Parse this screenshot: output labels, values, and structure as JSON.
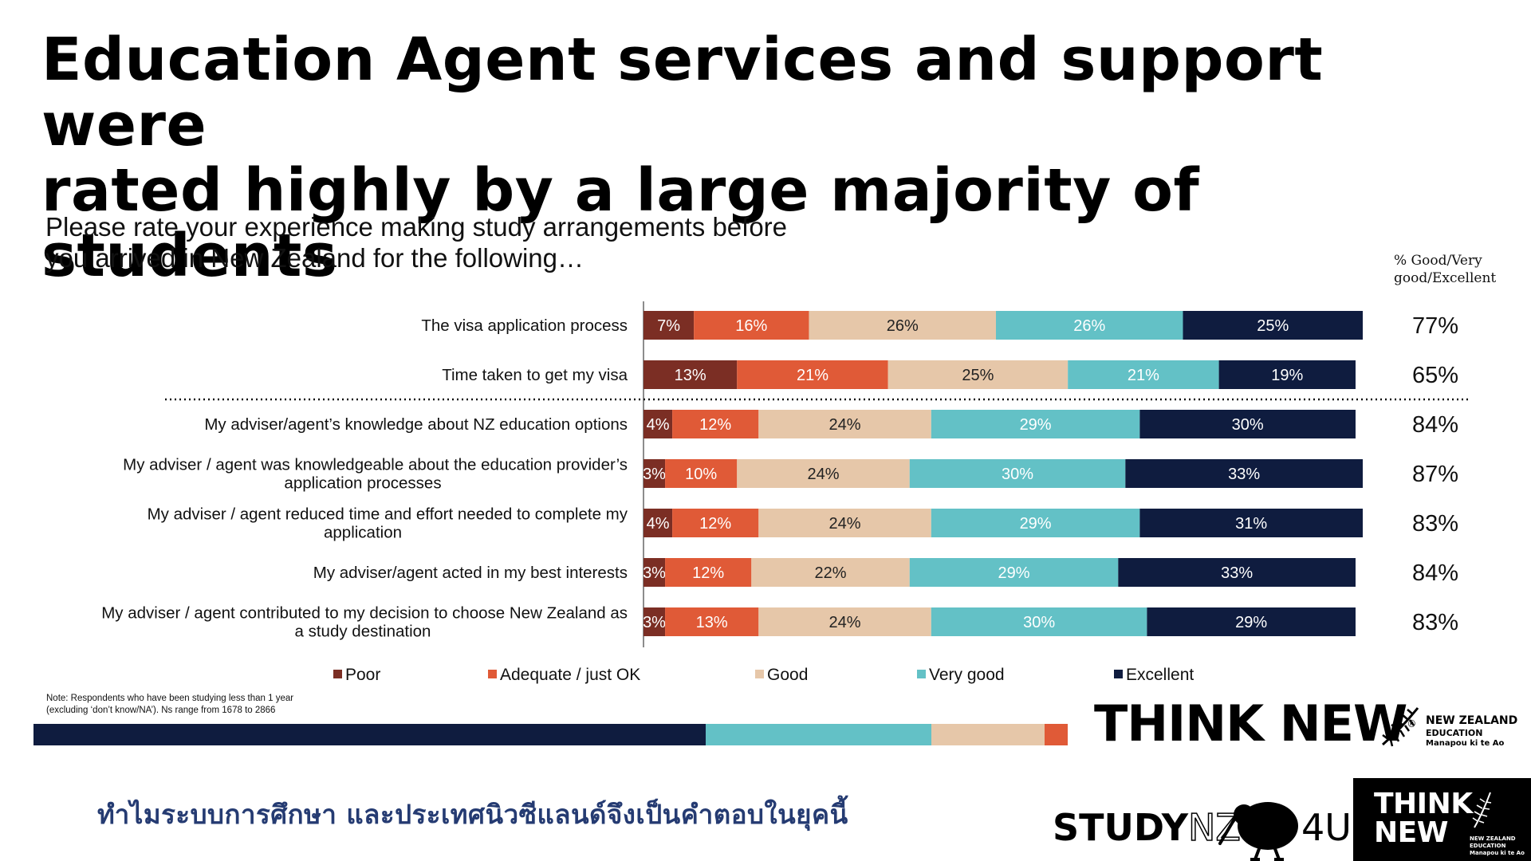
{
  "title_line1": "Education Agent services and support were",
  "title_line2": "rated highly by a large majority of students",
  "question_line1": "Please rate your experience making study arrangements before",
  "question_line2": "you arrived in New Zealand for the following…",
  "col_header_line1": "% Good/Very",
  "col_header_line2": "good/Excellent",
  "chart_data": {
    "type": "bar",
    "orientation": "horizontal-stacked-100",
    "question": "Please rate your experience making study arrangements before you arrived in New Zealand for the following…",
    "series": [
      {
        "name": "Poor",
        "color": "#7b2e24",
        "values": [
          7,
          13,
          4,
          3,
          4,
          3,
          3
        ]
      },
      {
        "name": "Adequate / just OK",
        "color": "#e05a37",
        "values": [
          16,
          21,
          12,
          10,
          12,
          12,
          13
        ]
      },
      {
        "name": "Good",
        "color": "#e6c7a9",
        "values": [
          26,
          25,
          24,
          24,
          24,
          22,
          24
        ]
      },
      {
        "name": "Very good",
        "color": "#63c1c6",
        "values": [
          26,
          21,
          29,
          30,
          29,
          29,
          30
        ]
      },
      {
        "name": "Excellent",
        "color": "#0f1c3f",
        "values": [
          25,
          19,
          30,
          33,
          31,
          33,
          29
        ]
      }
    ],
    "categories": [
      [
        "The visa application process"
      ],
      [
        "Time taken to get my visa"
      ],
      [
        "My adviser/agent’s knowledge about NZ education options"
      ],
      [
        "My adviser / agent was knowledgeable about the education provider’s",
        "application processes"
      ],
      [
        "My adviser / agent reduced time and effort needed to complete my",
        "application"
      ],
      [
        "My adviser/agent acted in my best interests"
      ],
      [
        "My adviser / agent contributed to my decision to choose New Zealand as",
        "a study destination"
      ]
    ],
    "pct_good_very_good_excellent": [
      "77%",
      "65%",
      "84%",
      "87%",
      "83%",
      "84%",
      "83%"
    ],
    "divider_after_row": 2,
    "xlim": [
      0,
      100
    ],
    "legend_position": "bottom"
  },
  "note_line1": "Note: Respondents who have been studying less than 1 year",
  "note_line2": "(excluding ‘don’t know/NA’). Ns range from 1678 to 2866",
  "stripe_colors": [
    "#0f1c3f",
    "#63c1c6",
    "#e6c7a9",
    "#e05a37"
  ],
  "brand": {
    "think_new": "THINK NEW",
    "registered": "®",
    "nz_line1": "NEW ZEALAND",
    "nz_line2": "EDUCATION",
    "nz_line3": "Manapou ki te Ao",
    "thai_caption": "ทำไมระบบการศึกษา และประเทศนิวซีแลนด์จึงเป็นคำตอบในยุคนี้",
    "study": "STUDY",
    "nz": "NZ",
    "four_u": "4U",
    "box_think": "THINK",
    "box_new": "NEW"
  }
}
